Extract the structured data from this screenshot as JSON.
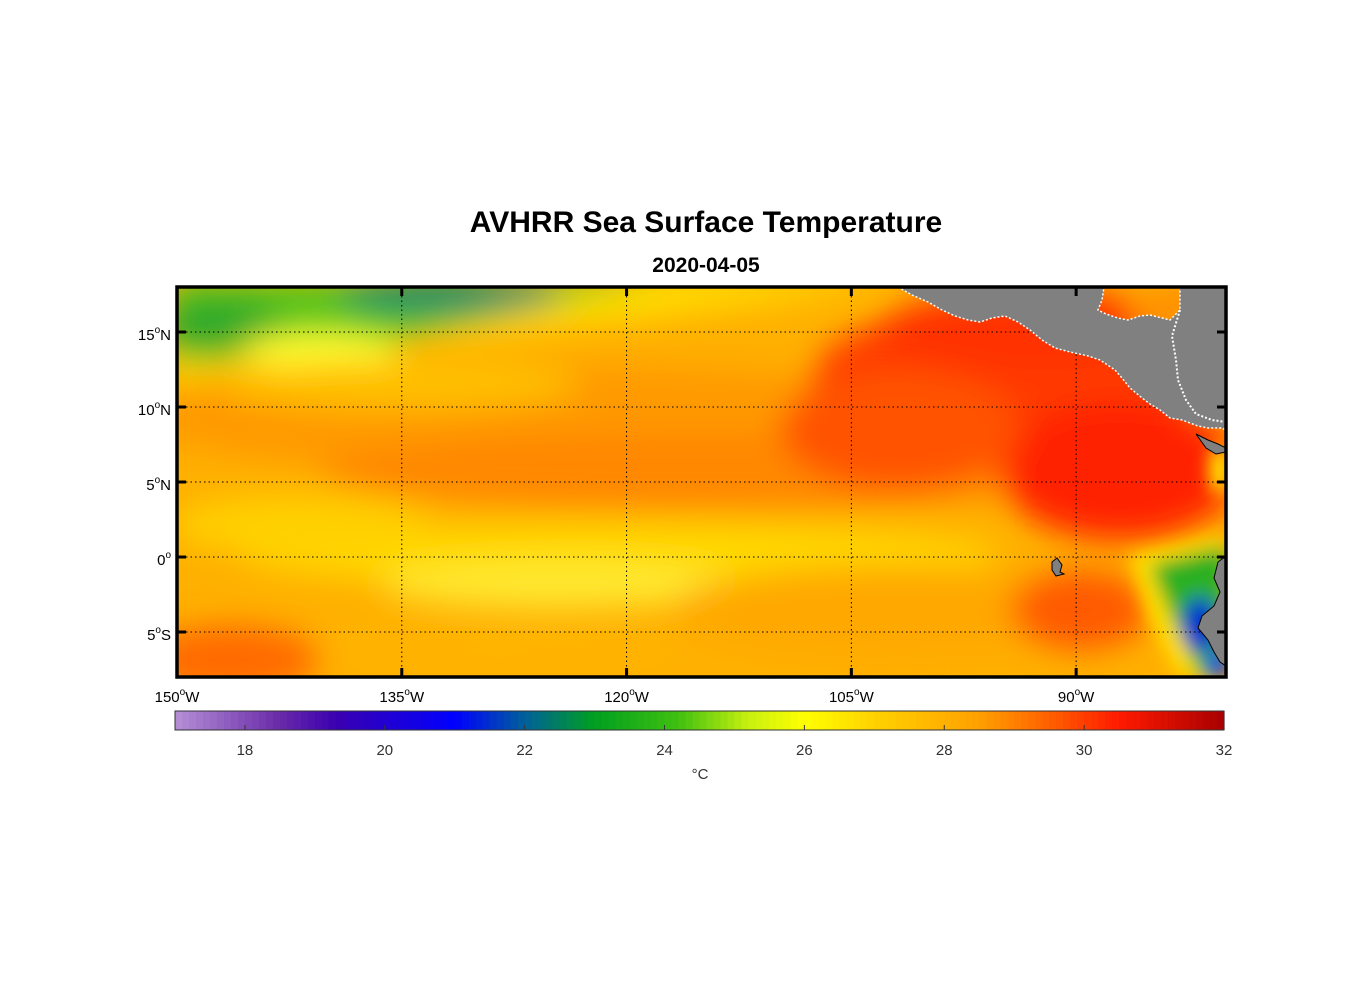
{
  "title": "AVHRR Sea Surface Temperature",
  "subtitle": "2020-04-05",
  "map": {
    "lon_range": [
      -150,
      -80
    ],
    "lat_range": [
      -8,
      18
    ],
    "lon_ticks": [
      {
        "value": -150,
        "num": "150",
        "hem": "W"
      },
      {
        "value": -135,
        "num": "135",
        "hem": "W"
      },
      {
        "value": -120,
        "num": "120",
        "hem": "W"
      },
      {
        "value": -105,
        "num": "105",
        "hem": "W"
      },
      {
        "value": -90,
        "num": "90",
        "hem": "W"
      }
    ],
    "lat_ticks": [
      {
        "value": 15,
        "num": "15",
        "hem": "N"
      },
      {
        "value": 10,
        "num": "10",
        "hem": "N"
      },
      {
        "value": 5,
        "num": "5",
        "hem": "N"
      },
      {
        "value": 0,
        "num": "0",
        "hem": ""
      },
      {
        "value": -5,
        "num": "5",
        "hem": "S"
      }
    ],
    "degree_symbol": "o",
    "land_color": "#808080",
    "grid": true
  },
  "colorbar": {
    "range": [
      17,
      32
    ],
    "ticks": [
      "18",
      "20",
      "22",
      "24",
      "26",
      "28",
      "30",
      "32"
    ],
    "unit": "°C",
    "stops": [
      {
        "v": 17,
        "c": "#b490d6"
      },
      {
        "v": 18.5,
        "c": "#6a2aa8"
      },
      {
        "v": 19.3,
        "c": "#3a00b0"
      },
      {
        "v": 21,
        "c": "#0000ff"
      },
      {
        "v": 22,
        "c": "#00609a"
      },
      {
        "v": 23,
        "c": "#00a020"
      },
      {
        "v": 24.2,
        "c": "#40c010"
      },
      {
        "v": 25.2,
        "c": "#c8f010"
      },
      {
        "v": 26,
        "c": "#ffff00"
      },
      {
        "v": 27,
        "c": "#ffd200"
      },
      {
        "v": 28.5,
        "c": "#ffa000"
      },
      {
        "v": 29.5,
        "c": "#ff6000"
      },
      {
        "v": 30.5,
        "c": "#ff1a00"
      },
      {
        "v": 32,
        "c": "#a80000"
      }
    ]
  }
}
